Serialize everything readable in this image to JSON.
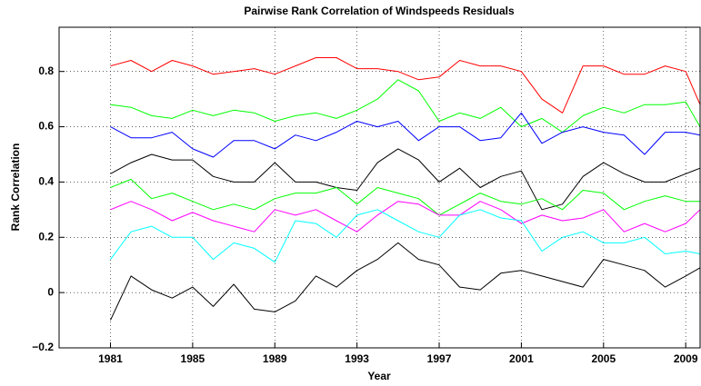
{
  "chart_data": {
    "type": "line",
    "title": "Pairwise Rank Correlation of Windspeeds Residuals",
    "x_label": "Year",
    "y_label": "Rank Correlation",
    "x": [
      1981,
      1982,
      1983,
      1984,
      1985,
      1986,
      1987,
      1988,
      1989,
      1990,
      1991,
      1992,
      1993,
      1994,
      1995,
      1996,
      1997,
      1998,
      1999,
      2000,
      2001,
      2002,
      2003,
      2004,
      2005,
      2006,
      2007,
      2008,
      2009,
      2009.7
    ],
    "series": [
      {
        "color": "#ff0000",
        "values": [
          0.82,
          0.84,
          0.8,
          0.84,
          0.82,
          0.79,
          0.8,
          0.81,
          0.79,
          0.82,
          0.85,
          0.85,
          0.81,
          0.81,
          0.8,
          0.77,
          0.78,
          0.84,
          0.82,
          0.82,
          0.8,
          0.7,
          0.65,
          0.82,
          0.82,
          0.79,
          0.79,
          0.82,
          0.8,
          0.68
        ]
      },
      {
        "color": "#00ff00",
        "values": [
          0.68,
          0.67,
          0.64,
          0.63,
          0.66,
          0.64,
          0.66,
          0.65,
          0.62,
          0.64,
          0.65,
          0.63,
          0.66,
          0.7,
          0.77,
          0.73,
          0.62,
          0.65,
          0.63,
          0.67,
          0.6,
          0.63,
          0.58,
          0.64,
          0.67,
          0.65,
          0.68,
          0.68,
          0.69,
          0.6
        ]
      },
      {
        "color": "#0000ff",
        "values": [
          0.6,
          0.56,
          0.56,
          0.58,
          0.52,
          0.49,
          0.55,
          0.55,
          0.52,
          0.57,
          0.55,
          0.58,
          0.62,
          0.6,
          0.62,
          0.55,
          0.6,
          0.6,
          0.55,
          0.56,
          0.65,
          0.54,
          0.58,
          0.6,
          0.58,
          0.57,
          0.5,
          0.58,
          0.58,
          0.57
        ]
      },
      {
        "color": "#000000",
        "values": [
          0.43,
          0.47,
          0.5,
          0.48,
          0.48,
          0.42,
          0.4,
          0.4,
          0.47,
          0.4,
          0.4,
          0.38,
          0.37,
          0.47,
          0.52,
          0.48,
          0.4,
          0.45,
          0.38,
          0.42,
          0.44,
          0.3,
          0.32,
          0.42,
          0.47,
          0.43,
          0.4,
          0.4,
          0.43,
          0.45
        ]
      },
      {
        "color": "#00ff00",
        "values": [
          0.38,
          0.41,
          0.34,
          0.36,
          0.33,
          0.3,
          0.32,
          0.3,
          0.34,
          0.36,
          0.36,
          0.38,
          0.32,
          0.38,
          0.36,
          0.34,
          0.28,
          0.32,
          0.36,
          0.33,
          0.32,
          0.34,
          0.3,
          0.37,
          0.36,
          0.3,
          0.33,
          0.35,
          0.33,
          0.33
        ]
      },
      {
        "color": "#ff00ff",
        "values": [
          0.3,
          0.33,
          0.3,
          0.26,
          0.29,
          0.26,
          0.24,
          0.22,
          0.3,
          0.28,
          0.3,
          0.26,
          0.22,
          0.28,
          0.33,
          0.32,
          0.28,
          0.28,
          0.33,
          0.3,
          0.25,
          0.28,
          0.26,
          0.27,
          0.3,
          0.22,
          0.25,
          0.22,
          0.25,
          0.3
        ]
      },
      {
        "color": "#00ffff",
        "values": [
          0.12,
          0.22,
          0.24,
          0.2,
          0.2,
          0.12,
          0.18,
          0.16,
          0.11,
          0.26,
          0.25,
          0.2,
          0.28,
          0.3,
          0.26,
          0.22,
          0.2,
          0.28,
          0.3,
          0.27,
          0.26,
          0.15,
          0.2,
          0.22,
          0.18,
          0.18,
          0.2,
          0.14,
          0.15,
          0.14
        ]
      },
      {
        "color": "#000000",
        "values": [
          -0.1,
          0.06,
          0.01,
          -0.02,
          0.02,
          -0.05,
          0.03,
          -0.06,
          -0.07,
          -0.03,
          0.06,
          0.02,
          0.08,
          0.12,
          0.18,
          0.12,
          0.1,
          0.02,
          0.01,
          0.07,
          0.08,
          0.06,
          0.04,
          0.02,
          0.12,
          0.1,
          0.08,
          0.02,
          0.06,
          0.09
        ]
      }
    ],
    "xlim": [
      1978.5,
      2009.7
    ],
    "ylim": [
      -0.2,
      0.96
    ],
    "xticks": [
      1981,
      1985,
      1989,
      1993,
      1997,
      2001,
      2005,
      2009
    ],
    "yticks": [
      {
        "value": -0.2,
        "label": "−0.2"
      },
      0,
      0.2,
      0.4,
      0.6,
      0.8
    ],
    "grid": true
  }
}
